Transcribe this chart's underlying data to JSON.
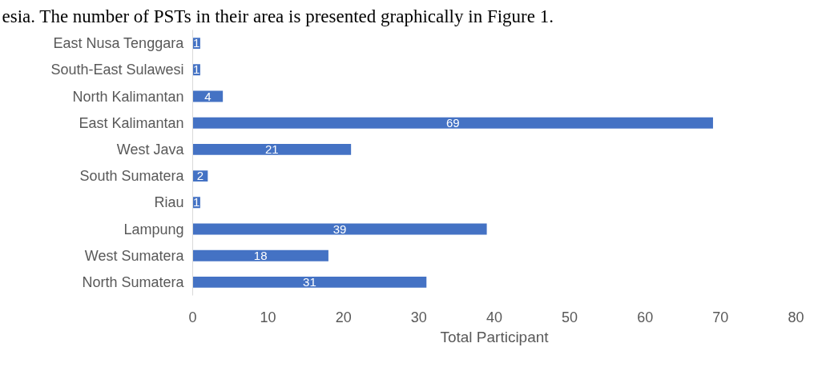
{
  "chart_data": {
    "type": "bar",
    "orientation": "horizontal",
    "xlabel": "Total Participant",
    "annotations": [
      "esia. The number of PSTs in their area is presented graphically in Figure 1."
    ],
    "categories": [
      "East Nusa Tenggara",
      "South-East Sulawesi",
      "North Kalimantan",
      "East Kalimantan",
      "West Java",
      "South Sumatera",
      "Riau",
      "Lampung",
      "West Sumatera",
      "North Sumatera"
    ],
    "values": [
      1,
      1,
      4,
      69,
      21,
      2,
      1,
      39,
      18,
      31
    ],
    "color": "#4472c4",
    "data_labels": true,
    "xlim": [
      0,
      80
    ],
    "xticks": [
      0,
      10,
      20,
      30,
      40,
      50,
      60,
      70,
      80
    ],
    "grid": false
  }
}
